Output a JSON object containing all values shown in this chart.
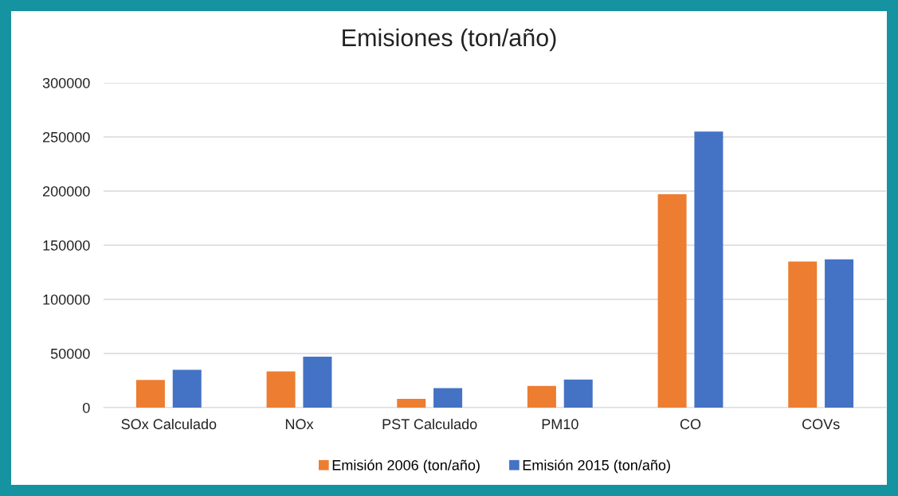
{
  "chart_data": {
    "type": "bar",
    "title": "Emisiones (ton/año)",
    "categories": [
      "SOx Calculado",
      "NOx",
      "PST Calculado",
      "PM10",
      "CO",
      "COVs"
    ],
    "series": [
      {
        "name": "Emisión 2006 (ton/año)",
        "color": "#ed7d31",
        "values": [
          25500,
          33500,
          8000,
          20000,
          197000,
          135000
        ]
      },
      {
        "name": "Emisión 2015 (ton/año)",
        "color": "#4472c4",
        "values": [
          35000,
          47000,
          18000,
          26000,
          255000,
          137000
        ]
      }
    ],
    "ylim": [
      0,
      300000
    ],
    "yticks": [
      0,
      50000,
      100000,
      150000,
      200000,
      250000,
      300000
    ],
    "grid": "y",
    "legend": "bottom"
  }
}
